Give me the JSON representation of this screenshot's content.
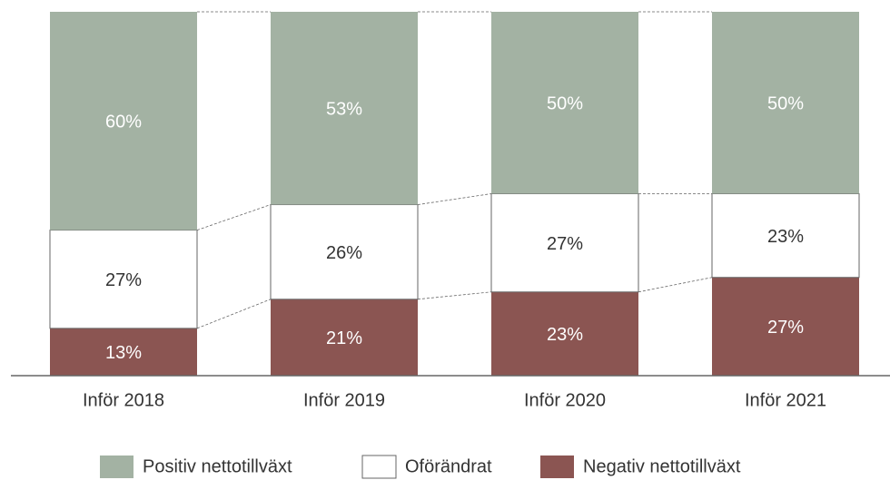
{
  "chart_data": {
    "type": "stacked_bar",
    "categories": [
      "Inför 2018",
      "Inför 2019",
      "Inför 2020",
      "Inför 2021"
    ],
    "series": [
      {
        "name": "Positiv nettotillväxt",
        "color": "#a3b2a3",
        "values": [
          60,
          53,
          50,
          50
        ],
        "value_labels": [
          "60%",
          "53%",
          "50%",
          "50%"
        ]
      },
      {
        "name": "Oförändrat",
        "color": "#ffffff",
        "values": [
          27,
          26,
          27,
          23
        ],
        "value_labels": [
          "27%",
          "26%",
          "27%",
          "23%"
        ]
      },
      {
        "name": "Negativ nettotillväxt",
        "color": "#8b5552",
        "values": [
          13,
          21,
          23,
          27
        ],
        "value_labels": [
          "13%",
          "21%",
          "23%",
          "27%"
        ]
      }
    ],
    "ylim": [
      0,
      100
    ]
  }
}
